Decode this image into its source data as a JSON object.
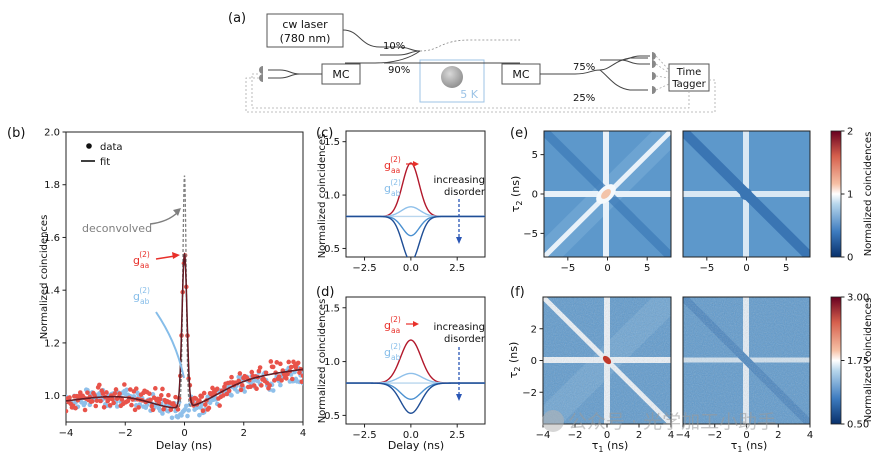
{
  "panel_labels": {
    "a": "(a)",
    "b": "(b)",
    "c": "(c)",
    "d": "(d)",
    "e": "(e)",
    "f": "(f)"
  },
  "setup": {
    "laser": "cw laser",
    "laser_wavelength": "(780 nm)",
    "split_10": "10%",
    "split_90": "90%",
    "mc_left": "MC",
    "mc_right": "MC",
    "temperature": "5 K",
    "split_75": "75%",
    "split_25": "25%",
    "tagger_line1": "Time",
    "tagger_line2": "Tagger"
  },
  "colors": {
    "data_red": "#e8534a",
    "data_blue": "#8fc0ea",
    "fit_black": "#1a1a1a",
    "gaa_dark": "#b2182b",
    "gab_light": "#8fc0ea",
    "gab_mid": "#4a90d0",
    "gab_dark": "#1f4e96",
    "annotation_red": "#e8302a",
    "annotation_blue": "#86bde9",
    "deconv_gray": "#7f7f7f",
    "arrow_blue": "#2a56b5"
  },
  "panel_b": {
    "legend_data": "data",
    "legend_fit": "fit",
    "ylabel": "Normalized coincidences",
    "xlabel": "Delay (ns)",
    "deconvolved": "deconvolved",
    "gaa_label": "g",
    "gaa_sup": "(2)",
    "gaa_sub": "aa",
    "gab_label": "g",
    "gab_sup": "(2)",
    "gab_sub": "ab"
  },
  "panel_c": {
    "ylabel": "Normalized coincidences",
    "annotation_line1": "increasing",
    "annotation_line2": "disorder",
    "gaa_label": "g",
    "gaa_sup": "(2)",
    "gaa_sub": "aa",
    "gab_label": "g",
    "gab_sup": "(2)",
    "gab_sub": "ab"
  },
  "panel_d": {
    "ylabel": "Normalized coincidences",
    "xlabel": "Delay (ns)",
    "annotation_line1": "increasing",
    "annotation_line2": "disorder",
    "gaa_label": "g",
    "gaa_sup": "(2)",
    "gaa_sub": "aa",
    "gab_label": "g",
    "gab_sup": "(2)",
    "gab_sub": "ab"
  },
  "panel_e": {
    "ylabel": "τ",
    "ylabel_sub": "2",
    "ylabel_unit": " (ns)",
    "colorbar_label": "Normalized coincidences"
  },
  "panel_f": {
    "ylabel": "τ",
    "ylabel_sub": "2",
    "ylabel_unit": " (ns)",
    "xlabel": "τ",
    "xlabel_sub": "1",
    "xlabel_unit": " (ns)",
    "colorbar_label": "Normalized coincidences"
  },
  "watermark": "公众号 · 光学加工小助手",
  "chart_data": [
    {
      "id": "b",
      "type": "scatter",
      "xlabel": "Delay (ns)",
      "ylabel": "Normalized coincidences",
      "xlim": [
        -4,
        4
      ],
      "ylim": [
        0.9,
        2.0
      ],
      "xticks": [
        -4,
        -2,
        0,
        2,
        4
      ],
      "yticks": [
        1.0,
        1.2,
        1.4,
        1.6,
        1.8,
        2.0
      ],
      "series": [
        {
          "name": "g(2)aa data",
          "base": 1.04,
          "slope": 0.015,
          "dip_depth": 0.07,
          "dip_width": 1.2,
          "peak_height": 0.55,
          "peak_width": 0.08,
          "spread": 0.035
        },
        {
          "name": "g(2)ab data",
          "base": 1.03,
          "slope": 0.012,
          "dip_depth": 0.08,
          "dip_width": 1.0,
          "peak_height": 0.0,
          "peak_width": 0.1,
          "spread": 0.03
        },
        {
          "name": "fit",
          "base": 1.04,
          "slope": 0.015,
          "dip_depth": 0.085,
          "dip_width": 1.1,
          "peak_height": 0.58,
          "peak_width": 0.085
        },
        {
          "name": "deconvolved",
          "base": 1.04,
          "slope": 0.015,
          "dip_depth": 0.085,
          "dip_width": 1.1,
          "peak_height": 0.88,
          "peak_width": 0.055
        }
      ]
    },
    {
      "id": "c",
      "type": "line",
      "xlim": [
        -3.5,
        4
      ],
      "ylim": [
        0.42,
        1.6
      ],
      "xticks": [
        -2.5,
        0.0,
        2.5
      ],
      "xtick_labels": [
        "−2.5",
        "0.0",
        "2.5"
      ],
      "yticks": [
        0.5,
        1.0,
        1.5
      ],
      "series": [
        {
          "name": "g(2)aa",
          "amp": 0.5,
          "width": 0.45
        },
        {
          "name": "g(2)ab-1",
          "amp": 0.09,
          "width": 0.5
        },
        {
          "name": "g(2)ab-2",
          "amp": 0.0,
          "width": 0.5
        },
        {
          "name": "g(2)ab-3",
          "amp": -0.18,
          "width": 0.45
        },
        {
          "name": "g(2)ab-4",
          "amp": -0.42,
          "width": 0.45
        }
      ]
    },
    {
      "id": "d",
      "type": "line",
      "xlim": [
        -3.5,
        4
      ],
      "ylim": [
        0.42,
        1.6
      ],
      "xticks": [
        -2.5,
        0.0,
        2.5
      ],
      "xtick_labels": [
        "−2.5",
        "0.0",
        "2.5"
      ],
      "yticks": [
        0.5,
        1.0,
        1.5
      ],
      "series": [
        {
          "name": "g(2)aa",
          "amp": 0.4,
          "width": 0.55
        },
        {
          "name": "g(2)ab-1",
          "amp": 0.09,
          "width": 0.6
        },
        {
          "name": "g(2)ab-2",
          "amp": 0.0,
          "width": 0.6
        },
        {
          "name": "g(2)ab-3",
          "amp": -0.15,
          "width": 0.55
        },
        {
          "name": "g(2)ab-4",
          "amp": -0.28,
          "width": 0.55
        }
      ]
    },
    {
      "id": "e",
      "type": "heatmap",
      "xlim": [
        -8,
        8
      ],
      "ylim": [
        -8,
        8
      ],
      "xticks": [
        -5,
        0,
        5
      ],
      "yticks": [
        -5,
        0,
        5
      ],
      "colorbar": {
        "min": 0,
        "mid": 1,
        "max": 2,
        "ticks": [
          "0",
          "1",
          "2"
        ]
      }
    },
    {
      "id": "f",
      "type": "heatmap",
      "xlim": [
        -4,
        4
      ],
      "ylim": [
        -4,
        4
      ],
      "xticks": [
        -4,
        -2,
        0,
        2,
        4
      ],
      "yticks": [
        -2,
        0,
        2
      ],
      "colorbar": {
        "min": 0.5,
        "mid": 1.75,
        "max": 3.0,
        "ticks": [
          "0.50",
          "1.75",
          "3.00"
        ]
      }
    }
  ]
}
